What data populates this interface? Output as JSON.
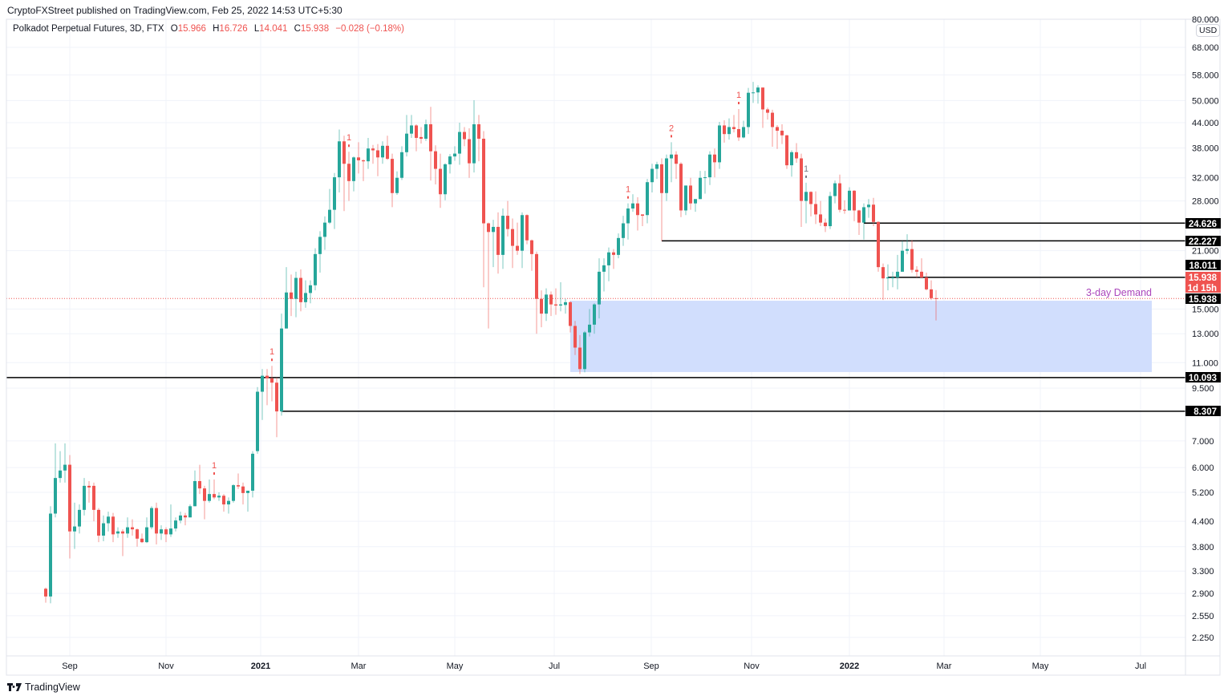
{
  "publish_line": "CryptoFXStreet published on TradingView.com, Feb 25, 2022 14:53 UTC+5:30",
  "legend": {
    "symbol": "Polkadot Perpetual Futures, 3D, FTX",
    "open_key": "O",
    "open": "15.966",
    "high_key": "H",
    "high": "16.726",
    "low_key": "L",
    "low": "14.041",
    "close_key": "C",
    "close": "15.938",
    "change": "−0.028 (−0.18%)"
  },
  "currency": "USD",
  "brand": "TradingView",
  "colors": {
    "up": "#26a69a",
    "down": "#ef5350",
    "demand_zone": "#cfdcfd",
    "demand_label": "#ab47bc",
    "level_line": "#000000",
    "price_line": "#ef5350",
    "marker": "#ef5350",
    "marker_alt": "#787b86"
  },
  "chart_data": {
    "type": "candlestick",
    "interval": "3D",
    "y_scale": "log",
    "grid": true,
    "y_ticks": [
      "80.000",
      "68.000",
      "58.000",
      "50.000",
      "44.000",
      "38.000",
      "32.000",
      "28.000",
      "21.000",
      "15.000",
      "13.000",
      "11.000",
      "9.500",
      "7.000",
      "6.000",
      "5.200",
      "4.400",
      "3.800",
      "3.300",
      "2.900",
      "2.550",
      "2.250"
    ],
    "x_ticks": [
      "Sep",
      "Nov",
      "2021",
      "Mar",
      "May",
      "Jul",
      "Sep",
      "Nov",
      "2022",
      "Mar",
      "May",
      "Jul"
    ],
    "candles_ohlc": [
      [
        2.98,
        3.0,
        2.75,
        2.85
      ],
      [
        2.85,
        4.8,
        2.74,
        4.6
      ],
      [
        4.6,
        6.9,
        4.5,
        5.65
      ],
      [
        5.65,
        6.6,
        5.5,
        5.9
      ],
      [
        5.9,
        6.9,
        5.5,
        6.1
      ],
      [
        6.1,
        6.45,
        3.55,
        4.15
      ],
      [
        4.15,
        4.9,
        3.75,
        4.27
      ],
      [
        4.27,
        4.85,
        4.1,
        4.7
      ],
      [
        4.7,
        5.65,
        4.55,
        5.4
      ],
      [
        5.4,
        5.55,
        4.9,
        5.35
      ],
      [
        5.4,
        5.5,
        4.4,
        4.7
      ],
      [
        4.7,
        4.75,
        3.9,
        4.05
      ],
      [
        4.05,
        4.55,
        3.92,
        4.35
      ],
      [
        4.35,
        4.65,
        4.15,
        4.52
      ],
      [
        4.52,
        4.62,
        3.9,
        4.08
      ],
      [
        4.1,
        4.25,
        4.0,
        4.15
      ],
      [
        4.15,
        4.2,
        3.6,
        4.1
      ],
      [
        4.1,
        4.5,
        4.0,
        4.25
      ],
      [
        4.25,
        4.45,
        4.05,
        4.2
      ],
      [
        4.2,
        4.22,
        3.8,
        3.98
      ],
      [
        3.98,
        4.1,
        3.88,
        3.9
      ],
      [
        3.9,
        4.5,
        3.88,
        4.25
      ],
      [
        4.25,
        4.8,
        4.2,
        4.75
      ],
      [
        4.75,
        4.9,
        3.85,
        4.1
      ],
      [
        4.1,
        4.3,
        3.95,
        4.2
      ],
      [
        4.2,
        4.25,
        3.9,
        4.08
      ],
      [
        4.08,
        4.85,
        4.02,
        4.22
      ],
      [
        4.22,
        4.5,
        4.15,
        4.42
      ],
      [
        4.42,
        4.65,
        4.35,
        4.55
      ],
      [
        4.55,
        4.62,
        4.3,
        4.5
      ],
      [
        4.5,
        4.85,
        4.5,
        4.8
      ],
      [
        4.8,
        5.9,
        4.8,
        5.55
      ],
      [
        5.55,
        6.1,
        5.15,
        5.32
      ],
      [
        5.32,
        5.4,
        4.45,
        4.95
      ],
      [
        4.95,
        5.6,
        4.9,
        5.15
      ],
      [
        5.15,
        5.6,
        5.0,
        5.05
      ],
      [
        5.05,
        5.2,
        4.95,
        5.1
      ],
      [
        5.1,
        5.15,
        4.65,
        4.85
      ],
      [
        4.85,
        5.05,
        4.6,
        4.95
      ],
      [
        4.95,
        5.45,
        4.9,
        5.42
      ],
      [
        5.42,
        5.8,
        5.3,
        5.38
      ],
      [
        5.38,
        5.5,
        4.85,
        5.18
      ],
      [
        5.18,
        5.25,
        4.65,
        5.25
      ],
      [
        5.25,
        6.6,
        5.05,
        6.5
      ],
      [
        6.6,
        9.55,
        6.5,
        9.3
      ],
      [
        9.3,
        10.6,
        7.9,
        10.2
      ],
      [
        10.2,
        10.6,
        8.6,
        10.05
      ],
      [
        10.05,
        10.8,
        8.8,
        9.8
      ],
      [
        9.8,
        10.1,
        7.15,
        8.3
      ],
      [
        8.3,
        14.6,
        8.1,
        13.4
      ],
      [
        13.4,
        19.1,
        13.4,
        16.5
      ],
      [
        16.5,
        18.3,
        14.4,
        15.9
      ],
      [
        15.9,
        18.6,
        14.3,
        17.95
      ],
      [
        17.95,
        18.85,
        14.8,
        15.6
      ],
      [
        15.6,
        17.7,
        15.1,
        16.45
      ],
      [
        16.45,
        17.7,
        15.5,
        17.2
      ],
      [
        17.2,
        21.3,
        16.7,
        20.6
      ],
      [
        20.6,
        23.5,
        18.5,
        22.75
      ],
      [
        22.75,
        25.6,
        21.1,
        24.7
      ],
      [
        24.7,
        30.0,
        24.5,
        26.6
      ],
      [
        26.6,
        32.9,
        23.8,
        32.1
      ],
      [
        32.1,
        42.3,
        29.4,
        39.5
      ],
      [
        39.5,
        40.8,
        26.4,
        34.7
      ],
      [
        34.7,
        37.2,
        28.0,
        31.4
      ],
      [
        31.4,
        36.2,
        29.6,
        36.0
      ],
      [
        36.0,
        39.3,
        32.8,
        35.4
      ],
      [
        35.4,
        35.6,
        31.4,
        35.2
      ],
      [
        35.2,
        40.3,
        33.7,
        37.9
      ],
      [
        37.9,
        38.7,
        34.7,
        37.5
      ],
      [
        37.5,
        38.9,
        32.3,
        36.0
      ],
      [
        36.0,
        39.5,
        34.7,
        38.5
      ],
      [
        38.5,
        40.8,
        35.5,
        35.7
      ],
      [
        35.7,
        36.8,
        27.0,
        29.3
      ],
      [
        29.3,
        33.2,
        29.0,
        32.0
      ],
      [
        32.0,
        38.4,
        31.6,
        37.1
      ],
      [
        37.1,
        46.0,
        36.2,
        41.3
      ],
      [
        41.3,
        46.0,
        40.3,
        43.3
      ],
      [
        43.3,
        43.6,
        37.3,
        40.3
      ],
      [
        40.5,
        42.9,
        39.0,
        40.1
      ],
      [
        40.1,
        44.8,
        39.6,
        43.6
      ],
      [
        43.6,
        48.2,
        31.5,
        37.3
      ],
      [
        37.3,
        38.6,
        30.8,
        33.7
      ],
      [
        33.7,
        36.8,
        26.9,
        29.1
      ],
      [
        29.1,
        34.8,
        28.1,
        34.6
      ],
      [
        34.6,
        36.7,
        32.8,
        36.2
      ],
      [
        36.2,
        38.4,
        35.3,
        36.8
      ],
      [
        36.8,
        44.0,
        34.5,
        41.7
      ],
      [
        41.7,
        42.9,
        38.4,
        40.0
      ],
      [
        40.0,
        42.6,
        32.0,
        34.8
      ],
      [
        34.8,
        50.1,
        33.0,
        43.6
      ],
      [
        43.6,
        46.0,
        35.2,
        40.1
      ],
      [
        40.1,
        41.9,
        17.0,
        24.6
      ],
      [
        24.6,
        24.7,
        13.4,
        23.4
      ],
      [
        23.4,
        25.1,
        19.1,
        24.1
      ],
      [
        24.1,
        26.2,
        18.4,
        20.5
      ],
      [
        20.5,
        26.8,
        18.9,
        25.7
      ],
      [
        25.7,
        28.0,
        22.8,
        23.8
      ],
      [
        23.8,
        25.3,
        19.0,
        21.6
      ],
      [
        21.6,
        24.7,
        20.5,
        21.0
      ],
      [
        21.0,
        26.2,
        19.0,
        25.8
      ],
      [
        25.8,
        25.9,
        21.8,
        22.3
      ],
      [
        22.3,
        22.4,
        18.7,
        20.6
      ],
      [
        20.6,
        20.9,
        13.0,
        15.9
      ],
      [
        15.9,
        16.7,
        13.5,
        14.6
      ],
      [
        14.6,
        16.9,
        14.0,
        16.3
      ],
      [
        16.3,
        16.6,
        14.4,
        15.4
      ],
      [
        15.4,
        16.9,
        14.5,
        15.3
      ],
      [
        15.3,
        17.5,
        14.8,
        15.4
      ],
      [
        15.35,
        15.9,
        14.6,
        15.6
      ],
      [
        15.6,
        15.7,
        13.1,
        13.6
      ],
      [
        13.6,
        14.0,
        11.5,
        12.0
      ],
      [
        12.0,
        12.9,
        10.3,
        10.6
      ],
      [
        10.6,
        13.2,
        10.4,
        13.1
      ],
      [
        13.1,
        15.0,
        12.8,
        13.7
      ],
      [
        13.7,
        15.5,
        13.0,
        15.4
      ],
      [
        15.4,
        20.1,
        14.2,
        18.6
      ],
      [
        18.6,
        20.1,
        16.6,
        19.3
      ],
      [
        19.3,
        21.4,
        17.6,
        20.8
      ],
      [
        20.8,
        21.2,
        18.9,
        20.5
      ],
      [
        20.5,
        23.2,
        20.1,
        22.6
      ],
      [
        22.6,
        25.7,
        21.6,
        24.6
      ],
      [
        24.6,
        27.6,
        22.4,
        26.8
      ],
      [
        26.8,
        29.1,
        26.3,
        27.6
      ],
      [
        27.6,
        28.6,
        23.6,
        25.8
      ],
      [
        25.9,
        25.9,
        24.2,
        25.7
      ],
      [
        25.8,
        31.8,
        24.6,
        31.2
      ],
      [
        31.2,
        34.7,
        29.4,
        33.7
      ],
      [
        33.7,
        35.1,
        31.8,
        34.6
      ],
      [
        34.6,
        35.8,
        22.2,
        29.3
      ],
      [
        29.3,
        36.6,
        28.0,
        35.8
      ],
      [
        35.8,
        39.3,
        31.2,
        36.6
      ],
      [
        36.6,
        37.3,
        31.8,
        34.7
      ],
      [
        34.7,
        35.0,
        25.5,
        26.5
      ],
      [
        26.5,
        30.6,
        25.8,
        30.6
      ],
      [
        30.6,
        32.0,
        26.6,
        27.6
      ],
      [
        27.6,
        28.3,
        26.3,
        28.3
      ],
      [
        28.3,
        33.3,
        28.3,
        32.0
      ],
      [
        32.0,
        33.3,
        29.2,
        32.1
      ],
      [
        32.1,
        37.3,
        30.7,
        36.6
      ],
      [
        36.6,
        37.9,
        32.1,
        35.0
      ],
      [
        35.0,
        44.2,
        33.7,
        43.3
      ],
      [
        43.3,
        44.6,
        39.2,
        41.2
      ],
      [
        41.2,
        45.1,
        39.9,
        42.9
      ],
      [
        42.9,
        46.0,
        41.6,
        42.4
      ],
      [
        42.4,
        47.6,
        39.6,
        40.4
      ],
      [
        40.4,
        44.5,
        40.2,
        42.9
      ],
      [
        42.9,
        53.8,
        41.2,
        52.3
      ],
      [
        52.3,
        55.7,
        49.3,
        52.4
      ],
      [
        52.4,
        54.6,
        49.1,
        53.9
      ],
      [
        53.9,
        53.9,
        42.7,
        47.5
      ],
      [
        47.5,
        48.0,
        44.8,
        46.6
      ],
      [
        46.6,
        47.4,
        38.3,
        42.9
      ],
      [
        42.9,
        43.4,
        37.8,
        42.0
      ],
      [
        42.0,
        43.6,
        38.9,
        40.9
      ],
      [
        40.9,
        41.0,
        33.7,
        34.4
      ],
      [
        34.4,
        37.5,
        32.2,
        37.1
      ],
      [
        37.1,
        39.1,
        34.9,
        35.8
      ],
      [
        35.8,
        36.8,
        24.1,
        28.0
      ],
      [
        28.0,
        31.1,
        24.6,
        29.5
      ],
      [
        29.5,
        29.6,
        25.6,
        27.5
      ],
      [
        27.5,
        29.6,
        24.5,
        25.9
      ],
      [
        25.9,
        28.0,
        24.2,
        24.7
      ],
      [
        24.7,
        25.3,
        23.4,
        24.2
      ],
      [
        24.2,
        29.5,
        23.8,
        28.8
      ],
      [
        28.8,
        31.5,
        27.6,
        31.0
      ],
      [
        31.0,
        32.6,
        26.2,
        26.6
      ],
      [
        26.6,
        28.1,
        26.0,
        26.5
      ],
      [
        26.5,
        30.3,
        26.5,
        29.7
      ],
      [
        29.7,
        29.8,
        24.9,
        26.5
      ],
      [
        26.5,
        26.6,
        23.0,
        24.7
      ],
      [
        24.7,
        27.6,
        22.4,
        27.0
      ],
      [
        27.0,
        28.3,
        25.4,
        27.4
      ],
      [
        27.4,
        28.5,
        24.2,
        24.8
      ],
      [
        24.8,
        24.9,
        18.6,
        19.1
      ],
      [
        19.1,
        19.5,
        15.8,
        17.9
      ],
      [
        17.9,
        19.4,
        16.7,
        18.0
      ],
      [
        17.9,
        18.6,
        17.0,
        18.0
      ],
      [
        18.0,
        20.5,
        16.8,
        18.6
      ],
      [
        18.6,
        22.2,
        18.6,
        21.0
      ],
      [
        21.0,
        23.1,
        20.6,
        21.2
      ],
      [
        21.2,
        22.3,
        18.5,
        18.8
      ],
      [
        18.8,
        19.2,
        18.0,
        18.6
      ],
      [
        18.6,
        20.1,
        17.9,
        18.0
      ],
      [
        18.0,
        18.5,
        16.7,
        16.8
      ],
      [
        16.8,
        17.7,
        15.8,
        15.966
      ],
      [
        15.966,
        16.726,
        14.041,
        15.938
      ]
    ],
    "markers": [
      {
        "candle": 36,
        "text": "1",
        "color": "#ef5350"
      },
      {
        "candle": 48,
        "text": "1",
        "color": "#ef5350"
      },
      {
        "candle": 64,
        "text": "1",
        "color": "#ef5350"
      },
      {
        "candle": 122,
        "text": "1",
        "color": "#ef5350"
      },
      {
        "candle": 131,
        "text": "2",
        "color": "#ef5350"
      },
      {
        "candle": 145,
        "text": "1",
        "color": "#ef5350"
      },
      {
        "candle": 159,
        "text": "1",
        "color": "#787b86"
      }
    ],
    "levels": [
      {
        "price": 24.626,
        "label": "24.626",
        "from_candle": 171
      },
      {
        "price": 22.227,
        "label": "22.227",
        "from_candle": 129
      },
      {
        "price": 18.011,
        "label": "18.011",
        "from_candle": 176
      },
      {
        "price": 10.093,
        "label": "10.093",
        "from_candle": 1
      },
      {
        "price": 8.307,
        "label": "8.307",
        "from_candle": 50
      }
    ],
    "demand_zone": {
      "label": "3-day Demand",
      "top": 15.73,
      "bottom": 10.42,
      "from_candle": 110,
      "to": "2022-07-08"
    },
    "last_price": {
      "value": 15.938,
      "label": "15.938",
      "countdown": "1d 15h"
    }
  }
}
